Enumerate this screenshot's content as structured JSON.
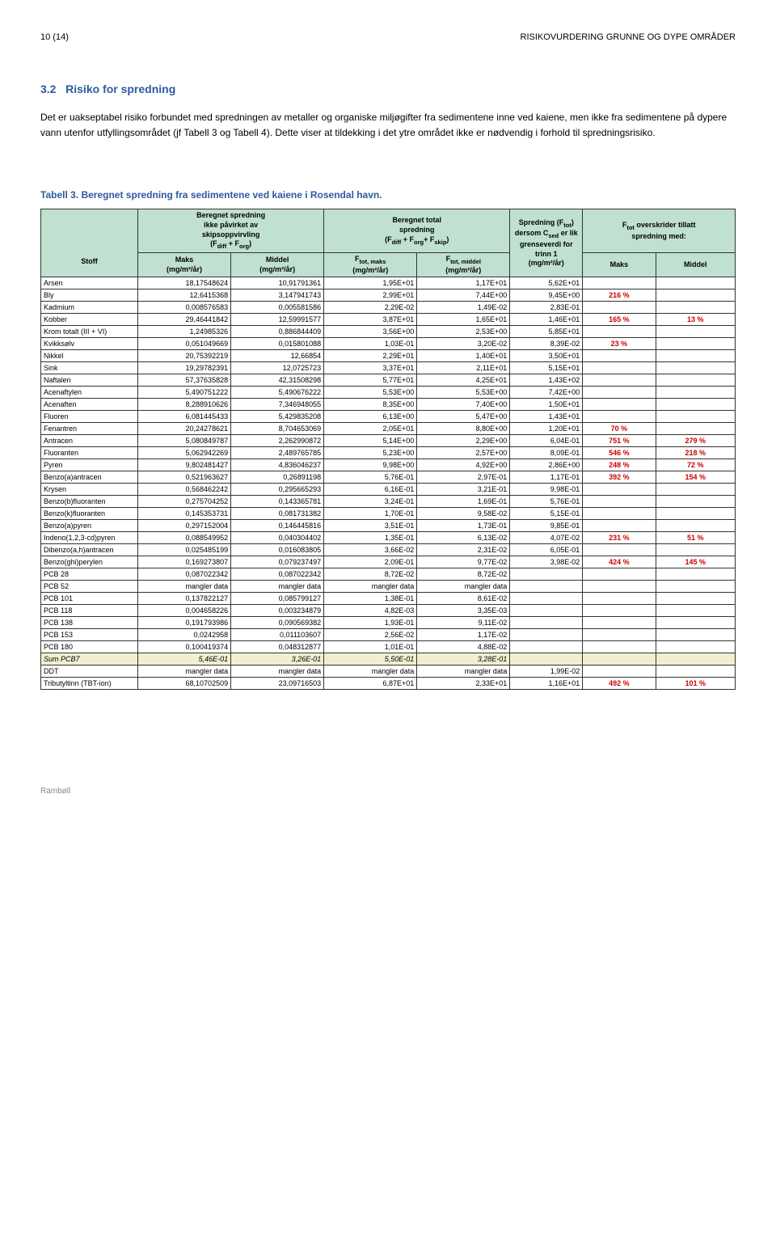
{
  "page_header_left": "10 (14)",
  "page_header_right": "RISIKOVURDERING GRUNNE OG DYPE OMRÅDER",
  "section_number": "3.2",
  "section_title": "Risiko for spredning",
  "paragraph": "Det er uakseptabel risiko forbundet med spredningen av metaller og organiske miljøgifter fra sedimentene inne ved kaiene, men ikke fra sedimentene på dypere vann utenfor utfyllingsområdet (jf Tabell 3 og Tabell 4). Dette viser at tildekking i det ytre området ikke er nødvendig i forhold til spredningsrisiko.",
  "table_caption": "Tabell 3. Beregnet spredning fra sedimentene ved kaiene i Rosendal havn.",
  "footer_text": "Rambøll",
  "headers": {
    "stoff": "Stoff",
    "group1_top": "Beregnet spredning ikke påvirket av skipsoppvirvling (F_diff + F_org)",
    "group2_top": "Beregnet total spredning (F_diff + F_org + F_skip)",
    "group3_top": "Spredning (F_tot) dersom C_sed er lik grenseverdi for trinn 1 (mg/m²/år)",
    "group4_top": "F_tot overskrider tillatt spredning med:",
    "maks": "Maks (mg/m²/år)",
    "middel": "Middel (mg/m²/år)",
    "ftot_maks": "F_tot, maks (mg/m²/år)",
    "ftot_middel": "F_tot, middel (mg/m²/år)",
    "maks2": "Maks",
    "middel2": "Middel"
  },
  "rows": [
    {
      "stoff": "Arsen",
      "c1": "18,17548624",
      "c2": "10,91791361",
      "c3": "1,95E+01",
      "c4": "1,17E+01",
      "c5": "5,62E+01",
      "p1": "",
      "p2": ""
    },
    {
      "stoff": "Bly",
      "c1": "12,6415368",
      "c2": "3,147941743",
      "c3": "2,99E+01",
      "c4": "7,44E+00",
      "c5": "9,45E+00",
      "p1": "216 %",
      "p2": ""
    },
    {
      "stoff": "Kadmium",
      "c1": "0,008576583",
      "c2": "0,005581586",
      "c3": "2,29E-02",
      "c4": "1,49E-02",
      "c5": "2,83E-01",
      "p1": "",
      "p2": ""
    },
    {
      "stoff": "Kobber",
      "c1": "29,46441842",
      "c2": "12,59991577",
      "c3": "3,87E+01",
      "c4": "1,65E+01",
      "c5": "1,46E+01",
      "p1": "165 %",
      "p2": "13 %"
    },
    {
      "stoff": "Krom totalt (III + VI)",
      "c1": "1,24985326",
      "c2": "0,886844409",
      "c3": "3,56E+00",
      "c4": "2,53E+00",
      "c5": "5,85E+01",
      "p1": "",
      "p2": ""
    },
    {
      "stoff": "Kvikksølv",
      "c1": "0,051049669",
      "c2": "0,015801088",
      "c3": "1,03E-01",
      "c4": "3,20E-02",
      "c5": "8,39E-02",
      "p1": "23 %",
      "p2": ""
    },
    {
      "stoff": "Nikkel",
      "c1": "20,75392219",
      "c2": "12,66854",
      "c3": "2,29E+01",
      "c4": "1,40E+01",
      "c5": "3,50E+01",
      "p1": "",
      "p2": ""
    },
    {
      "stoff": "Sink",
      "c1": "19,29782391",
      "c2": "12,0725723",
      "c3": "3,37E+01",
      "c4": "2,11E+01",
      "c5": "5,15E+01",
      "p1": "",
      "p2": ""
    },
    {
      "stoff": "Naftalen",
      "c1": "57,37635828",
      "c2": "42,31508298",
      "c3": "5,77E+01",
      "c4": "4,25E+01",
      "c5": "1,43E+02",
      "p1": "",
      "p2": ""
    },
    {
      "stoff": "Acenaftylen",
      "c1": "5,490751222",
      "c2": "5,490676222",
      "c3": "5,53E+00",
      "c4": "5,53E+00",
      "c5": "7,42E+00",
      "p1": "",
      "p2": ""
    },
    {
      "stoff": "Acenaften",
      "c1": "8,288910626",
      "c2": "7,346948055",
      "c3": "8,35E+00",
      "c4": "7,40E+00",
      "c5": "1,50E+01",
      "p1": "",
      "p2": ""
    },
    {
      "stoff": "Fluoren",
      "c1": "6,081445433",
      "c2": "5,429835208",
      "c3": "6,13E+00",
      "c4": "5,47E+00",
      "c5": "1,43E+01",
      "p1": "",
      "p2": ""
    },
    {
      "stoff": "Fenantren",
      "c1": "20,24278621",
      "c2": "8,704653069",
      "c3": "2,05E+01",
      "c4": "8,80E+00",
      "c5": "1,20E+01",
      "p1": "70 %",
      "p2": ""
    },
    {
      "stoff": "Antracen",
      "c1": "5,080849787",
      "c2": "2,262990872",
      "c3": "5,14E+00",
      "c4": "2,29E+00",
      "c5": "6,04E-01",
      "p1": "751 %",
      "p2": "279 %"
    },
    {
      "stoff": "Fluoranten",
      "c1": "5,062942269",
      "c2": "2,489765785",
      "c3": "5,23E+00",
      "c4": "2,57E+00",
      "c5": "8,09E-01",
      "p1": "546 %",
      "p2": "218 %"
    },
    {
      "stoff": "Pyren",
      "c1": "9,802481427",
      "c2": "4,836046237",
      "c3": "9,98E+00",
      "c4": "4,92E+00",
      "c5": "2,86E+00",
      "p1": "248 %",
      "p2": "72 %"
    },
    {
      "stoff": "Benzo(a)antracen",
      "c1": "0,521963627",
      "c2": "0,26891198",
      "c3": "5,76E-01",
      "c4": "2,97E-01",
      "c5": "1,17E-01",
      "p1": "392 %",
      "p2": "154 %"
    },
    {
      "stoff": "Krysen",
      "c1": "0,568462242",
      "c2": "0,295665293",
      "c3": "6,16E-01",
      "c4": "3,21E-01",
      "c5": "9,98E-01",
      "p1": "",
      "p2": ""
    },
    {
      "stoff": "Benzo(b)fluoranten",
      "c1": "0,275704252",
      "c2": "0,143365781",
      "c3": "3,24E-01",
      "c4": "1,69E-01",
      "c5": "5,76E-01",
      "p1": "",
      "p2": ""
    },
    {
      "stoff": "Benzo(k)fluoranten",
      "c1": "0,145353731",
      "c2": "0,081731382",
      "c3": "1,70E-01",
      "c4": "9,58E-02",
      "c5": "5,15E-01",
      "p1": "",
      "p2": ""
    },
    {
      "stoff": "Benzo(a)pyren",
      "c1": "0,297152004",
      "c2": "0,146445816",
      "c3": "3,51E-01",
      "c4": "1,73E-01",
      "c5": "9,85E-01",
      "p1": "",
      "p2": ""
    },
    {
      "stoff": "Indeno(1,2,3-cd)pyren",
      "c1": "0,088549952",
      "c2": "0,040304402",
      "c3": "1,35E-01",
      "c4": "6,13E-02",
      "c5": "4,07E-02",
      "p1": "231 %",
      "p2": "51 %"
    },
    {
      "stoff": "Dibenzo(a,h)antracen",
      "c1": "0,025485199",
      "c2": "0,016083805",
      "c3": "3,66E-02",
      "c4": "2,31E-02",
      "c5": "6,05E-01",
      "p1": "",
      "p2": ""
    },
    {
      "stoff": "Benzo(ghi)perylen",
      "c1": "0,169273807",
      "c2": "0,079237497",
      "c3": "2,09E-01",
      "c4": "9,77E-02",
      "c5": "3,98E-02",
      "p1": "424 %",
      "p2": "145 %"
    },
    {
      "stoff": "PCB 28",
      "c1": "0,087022342",
      "c2": "0,087022342",
      "c3": "8,72E-02",
      "c4": "8,72E-02",
      "c5": "",
      "p1": "",
      "p2": ""
    },
    {
      "stoff": "PCB 52",
      "c1": "mangler data",
      "c2": "mangler data",
      "c3": "mangler data",
      "c4": "mangler data",
      "c5": "",
      "p1": "",
      "p2": ""
    },
    {
      "stoff": "PCB 101",
      "c1": "0,137822127",
      "c2": "0,085799127",
      "c3": "1,38E-01",
      "c4": "8,61E-02",
      "c5": "",
      "p1": "",
      "p2": ""
    },
    {
      "stoff": "PCB 118",
      "c1": "0,004658226",
      "c2": "0,003234879",
      "c3": "4,82E-03",
      "c4": "3,35E-03",
      "c5": "",
      "p1": "",
      "p2": ""
    },
    {
      "stoff": "PCB 138",
      "c1": "0,191793986",
      "c2": "0,090569382",
      "c3": "1,93E-01",
      "c4": "9,11E-02",
      "c5": "",
      "p1": "",
      "p2": ""
    },
    {
      "stoff": "PCB 153",
      "c1": "0,0242958",
      "c2": "0,011103607",
      "c3": "2,56E-02",
      "c4": "1,17E-02",
      "c5": "",
      "p1": "",
      "p2": ""
    },
    {
      "stoff": "PCB 180",
      "c1": "0,100419374",
      "c2": "0,048312877",
      "c3": "1,01E-01",
      "c4": "4,88E-02",
      "c5": "",
      "p1": "",
      "p2": ""
    },
    {
      "stoff": "Sum PCB7",
      "c1": "5,46E-01",
      "c2": "3,26E-01",
      "c3": "5,50E-01",
      "c4": "3,28E-01",
      "c5": "",
      "p1": "",
      "p2": "",
      "highlight": true
    },
    {
      "stoff": "DDT",
      "c1": "mangler data",
      "c2": "mangler data",
      "c3": "mangler data",
      "c4": "mangler data",
      "c5": "1,99E-02",
      "p1": "",
      "p2": ""
    },
    {
      "stoff": "Tributyltinn (TBT-ion)",
      "c1": "68,10702509",
      "c2": "23,09716503",
      "c3": "6,87E+01",
      "c4": "2,33E+01",
      "c5": "1,16E+01",
      "p1": "492 %",
      "p2": "101 %"
    }
  ]
}
